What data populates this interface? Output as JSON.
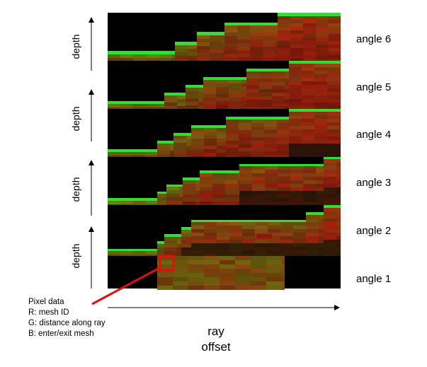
{
  "angles": [
    {
      "label": "angle 6"
    },
    {
      "label": "angle 5"
    },
    {
      "label": "angle 4"
    },
    {
      "label": "angle 3"
    },
    {
      "label": "angle 2"
    },
    {
      "label": "angle 1"
    }
  ],
  "depth_labels": [
    "depth",
    "depth",
    "depth",
    "depth"
  ],
  "legend": {
    "title": "Pixel data",
    "lines": [
      "R: mesh ID",
      "G: distance along ray",
      "B: enter/exit mesh"
    ]
  },
  "x_axis": {
    "line1": "ray",
    "line2": "offset"
  },
  "colors": {
    "highlight": "#e01010",
    "bright_green": "#33dd33",
    "background": "#000000"
  }
}
